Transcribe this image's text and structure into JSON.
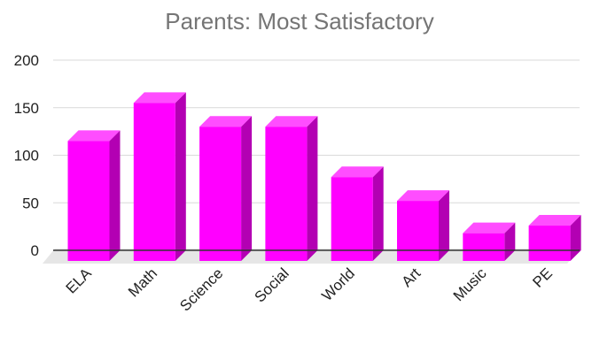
{
  "chart_data": {
    "type": "bar",
    "title": "Parents: Most Satisfactory",
    "xlabel": "",
    "ylabel": "",
    "categories": [
      "ELA",
      "Math",
      "Science",
      "Social",
      "World",
      "Art",
      "Music",
      "PE"
    ],
    "values": [
      115,
      155,
      130,
      130,
      77,
      52,
      18,
      26
    ],
    "ylim": [
      0,
      200
    ],
    "yticks": [
      0,
      50,
      100,
      150,
      200
    ],
    "grid": true,
    "legend": "none",
    "style": "3d-column",
    "colors": {
      "bar_front": "#ff00ff",
      "bar_top": "#ff4dff",
      "bar_side": "#b300b3",
      "floor": "#e6e6e6",
      "gridline": "#d9d9d9",
      "axis": "#333333",
      "title": "#757575",
      "text": "#222222"
    }
  }
}
